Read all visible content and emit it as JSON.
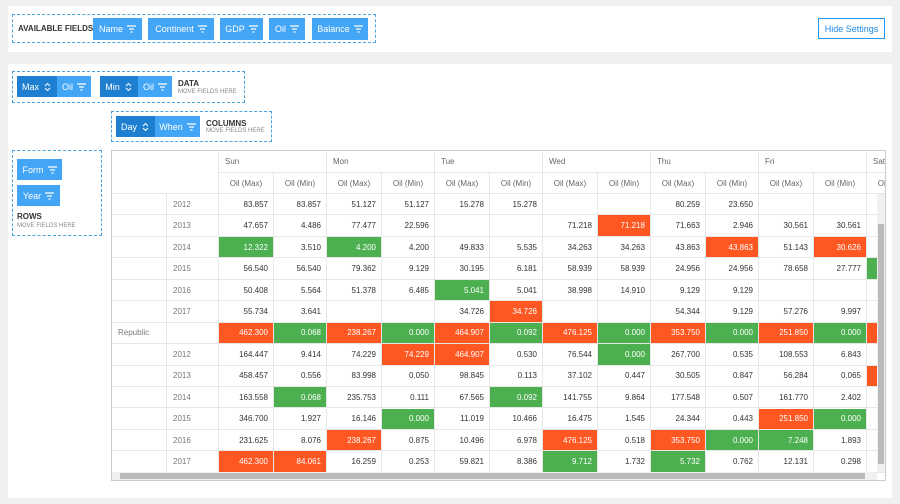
{
  "fields_panel": {
    "label": "AVAILABLE FIELDS",
    "fields": [
      "Name",
      "Continent",
      "GDP",
      "Oil",
      "Balance"
    ],
    "hide_button": "Hide Settings"
  },
  "data_area": {
    "items": [
      {
        "agg": "Max",
        "field": "Oil"
      },
      {
        "agg": "Min",
        "field": "Oil"
      }
    ],
    "label": "DATA",
    "hint": "MOVE FIELDS HERE"
  },
  "columns_area": {
    "items": [
      {
        "sort": "Day",
        "field": "When"
      }
    ],
    "label": "COLUMNS",
    "hint": "MOVE FIELDS HERE"
  },
  "rows_area": {
    "items": [
      "Form",
      "Year"
    ],
    "label": "ROWS",
    "hint": "MOVE FIELDS HERE"
  },
  "table": {
    "days": [
      "Sun",
      "Mon",
      "Tue",
      "Wed",
      "Thu",
      "Fri",
      "Sat"
    ],
    "measures": [
      "Oil (Max)",
      "Oil (Min)"
    ],
    "green_color": "#4caf50",
    "orange_color": "#ff5722",
    "rows": [
      {
        "group": null,
        "year": "2012",
        "cells": [
          "83.857",
          "83.857",
          "51.127",
          "51.127",
          "15.278",
          "15.278",
          null,
          null,
          "80.259",
          "23.650",
          null,
          null,
          null
        ],
        "green": [],
        "orange": []
      },
      {
        "group": null,
        "year": "2013",
        "cells": [
          "47.657",
          "4.486",
          "77.477",
          "22.596",
          null,
          null,
          "71.218",
          "71.218",
          "71.663",
          "2.946",
          "30.561",
          "30.561",
          null
        ],
        "green": [],
        "orange": [
          7
        ]
      },
      {
        "group": null,
        "year": "2014",
        "cells": [
          "12.322",
          "3.510",
          "4.200",
          "4.200",
          "49.833",
          "5.535",
          "34.263",
          "34.263",
          "43.863",
          "43.863",
          "51.143",
          "30.626",
          null
        ],
        "green": [
          0,
          2
        ],
        "orange": [
          9,
          11
        ]
      },
      {
        "group": null,
        "year": "2015",
        "cells": [
          "56.540",
          "56.540",
          "79.362",
          "9.129",
          "30.195",
          "6.181",
          "58.939",
          "58.939",
          "24.956",
          "24.956",
          "78.658",
          "27.777",
          null
        ],
        "green": [
          12
        ],
        "orange": []
      },
      {
        "group": null,
        "year": "2016",
        "cells": [
          "50.408",
          "5.564",
          "51.378",
          "6.485",
          "5.041",
          "5.041",
          "38.998",
          "14.910",
          "9.129",
          "9.129",
          null,
          null,
          null
        ],
        "green": [
          4
        ],
        "orange": []
      },
      {
        "group": null,
        "year": "2017",
        "cells": [
          "55.734",
          "3.641",
          null,
          null,
          "34.726",
          "34.726",
          null,
          null,
          "54.344",
          "9.129",
          "57.276",
          "9.997",
          null
        ],
        "green": [],
        "orange": [
          5
        ]
      },
      {
        "group": "Republic",
        "year": null,
        "cells": [
          "462.300",
          "0.068",
          "238.267",
          "0.000",
          "464.907",
          "0.092",
          "476.125",
          "0.000",
          "353.750",
          "0.000",
          "251.850",
          "0.000",
          null
        ],
        "green": [
          1,
          3,
          5,
          7,
          9,
          11
        ],
        "orange": [
          0,
          2,
          4,
          6,
          8,
          10,
          12
        ]
      },
      {
        "group": null,
        "year": "2012",
        "cells": [
          "164.447",
          "9.414",
          "74.229",
          "74.229",
          "464.907",
          "0.530",
          "76.544",
          "0.000",
          "267.700",
          "0.535",
          "108.553",
          "6.843",
          null
        ],
        "green": [
          7
        ],
        "orange": [
          3,
          4
        ]
      },
      {
        "group": null,
        "year": "2013",
        "cells": [
          "458.457",
          "0.556",
          "83.998",
          "0.050",
          "98.845",
          "0.113",
          "37.102",
          "0.447",
          "30.505",
          "0.847",
          "56.284",
          "0.065",
          null
        ],
        "green": [],
        "orange": [
          12
        ]
      },
      {
        "group": null,
        "year": "2014",
        "cells": [
          "163.558",
          "0.068",
          "235.753",
          "0.111",
          "67.565",
          "0.092",
          "141.755",
          "9.864",
          "177.548",
          "0.507",
          "161.770",
          "2.402",
          null
        ],
        "green": [
          1,
          5
        ],
        "orange": []
      },
      {
        "group": null,
        "year": "2015",
        "cells": [
          "346.700",
          "1.927",
          "16.146",
          "0.000",
          "11.019",
          "10.466",
          "16.475",
          "1.545",
          "24.344",
          "0.443",
          "251.850",
          "0.000",
          null
        ],
        "green": [
          3,
          11
        ],
        "orange": [
          10
        ]
      },
      {
        "group": null,
        "year": "2016",
        "cells": [
          "231.625",
          "8.076",
          "238.267",
          "0.875",
          "10.496",
          "6.978",
          "476.125",
          "0.518",
          "353.750",
          "0.000",
          "7.248",
          "1.893",
          null
        ],
        "green": [
          9,
          10
        ],
        "orange": [
          2,
          6,
          8
        ]
      },
      {
        "group": null,
        "year": "2017",
        "cells": [
          "462.300",
          "84.061",
          "16.259",
          "0.253",
          "59.821",
          "8.386",
          "9.712",
          "1.732",
          "5.732",
          "0.762",
          "12.131",
          "0.298",
          null
        ],
        "green": [
          6,
          8
        ],
        "orange": [
          0,
          1
        ]
      }
    ]
  }
}
